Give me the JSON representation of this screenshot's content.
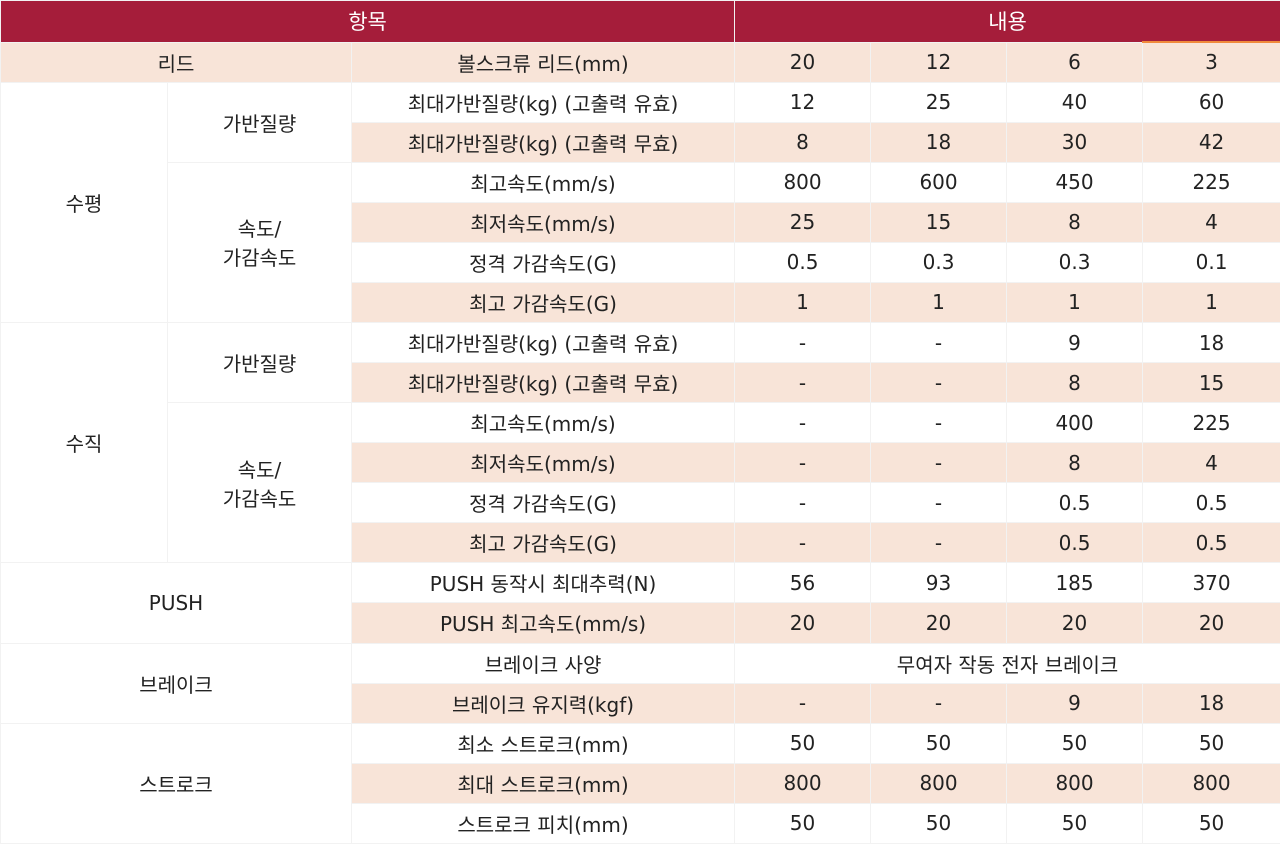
{
  "header": {
    "item": "항목",
    "content": "내용"
  },
  "lead": {
    "label": "리드",
    "param": "볼스크류 리드(mm)",
    "values": [
      "20",
      "12",
      "6",
      "3"
    ]
  },
  "horizontal": {
    "label": "수평",
    "payload_label": "가반질량",
    "speed_label_1": "속도/",
    "speed_label_2": "가감속도",
    "rows": [
      {
        "param": "최대가반질량(kg) (고출력 유효)",
        "values": [
          "12",
          "25",
          "40",
          "60"
        ]
      },
      {
        "param": "최대가반질량(kg) (고출력 무효)",
        "values": [
          "8",
          "18",
          "30",
          "42"
        ]
      },
      {
        "param": "최고속도(mm/s)",
        "values": [
          "800",
          "600",
          "450",
          "225"
        ]
      },
      {
        "param": "최저속도(mm/s)",
        "values": [
          "25",
          "15",
          "8",
          "4"
        ]
      },
      {
        "param": "정격 가감속도(G)",
        "values": [
          "0.5",
          "0.3",
          "0.3",
          "0.1"
        ]
      },
      {
        "param": "최고 가감속도(G)",
        "values": [
          "1",
          "1",
          "1",
          "1"
        ]
      }
    ]
  },
  "vertical": {
    "label": "수직",
    "payload_label": "가반질량",
    "speed_label_1": "속도/",
    "speed_label_2": "가감속도",
    "rows": [
      {
        "param": "최대가반질량(kg) (고출력 유효)",
        "values": [
          "-",
          "-",
          "9",
          "18"
        ]
      },
      {
        "param": "최대가반질량(kg) (고출력 무효)",
        "values": [
          "-",
          "-",
          "8",
          "15"
        ]
      },
      {
        "param": "최고속도(mm/s)",
        "values": [
          "-",
          "-",
          "400",
          "225"
        ]
      },
      {
        "param": "최저속도(mm/s)",
        "values": [
          "-",
          "-",
          "8",
          "4"
        ]
      },
      {
        "param": "정격 가감속도(G)",
        "values": [
          "-",
          "-",
          "0.5",
          "0.5"
        ]
      },
      {
        "param": "최고 가감속도(G)",
        "values": [
          "-",
          "-",
          "0.5",
          "0.5"
        ]
      }
    ]
  },
  "push": {
    "label": "PUSH",
    "rows": [
      {
        "param": "PUSH 동작시 최대추력(N)",
        "values": [
          "56",
          "93",
          "185",
          "370"
        ]
      },
      {
        "param": "PUSH 최고속도(mm/s)",
        "values": [
          "20",
          "20",
          "20",
          "20"
        ]
      }
    ]
  },
  "brake": {
    "label": "브레이크",
    "spec_param": "브레이크 사양",
    "spec_value": "무여자 작동 전자 브레이크",
    "hold_param": "브레이크 유지력(kgf)",
    "hold_values": [
      "-",
      "-",
      "9",
      "18"
    ]
  },
  "stroke": {
    "label": "스트로크",
    "rows": [
      {
        "param": "최소 스트로크(mm)",
        "values": [
          "50",
          "50",
          "50",
          "50"
        ]
      },
      {
        "param": "최대 스트로크(mm)",
        "values": [
          "800",
          "800",
          "800",
          "800"
        ]
      },
      {
        "param": "스트로크 피치(mm)",
        "values": [
          "50",
          "50",
          "50",
          "50"
        ]
      }
    ]
  },
  "colors": {
    "header_bg": "#a51d3a",
    "shade_bg": "#f8e4d8",
    "accent": "#f08a3c"
  }
}
